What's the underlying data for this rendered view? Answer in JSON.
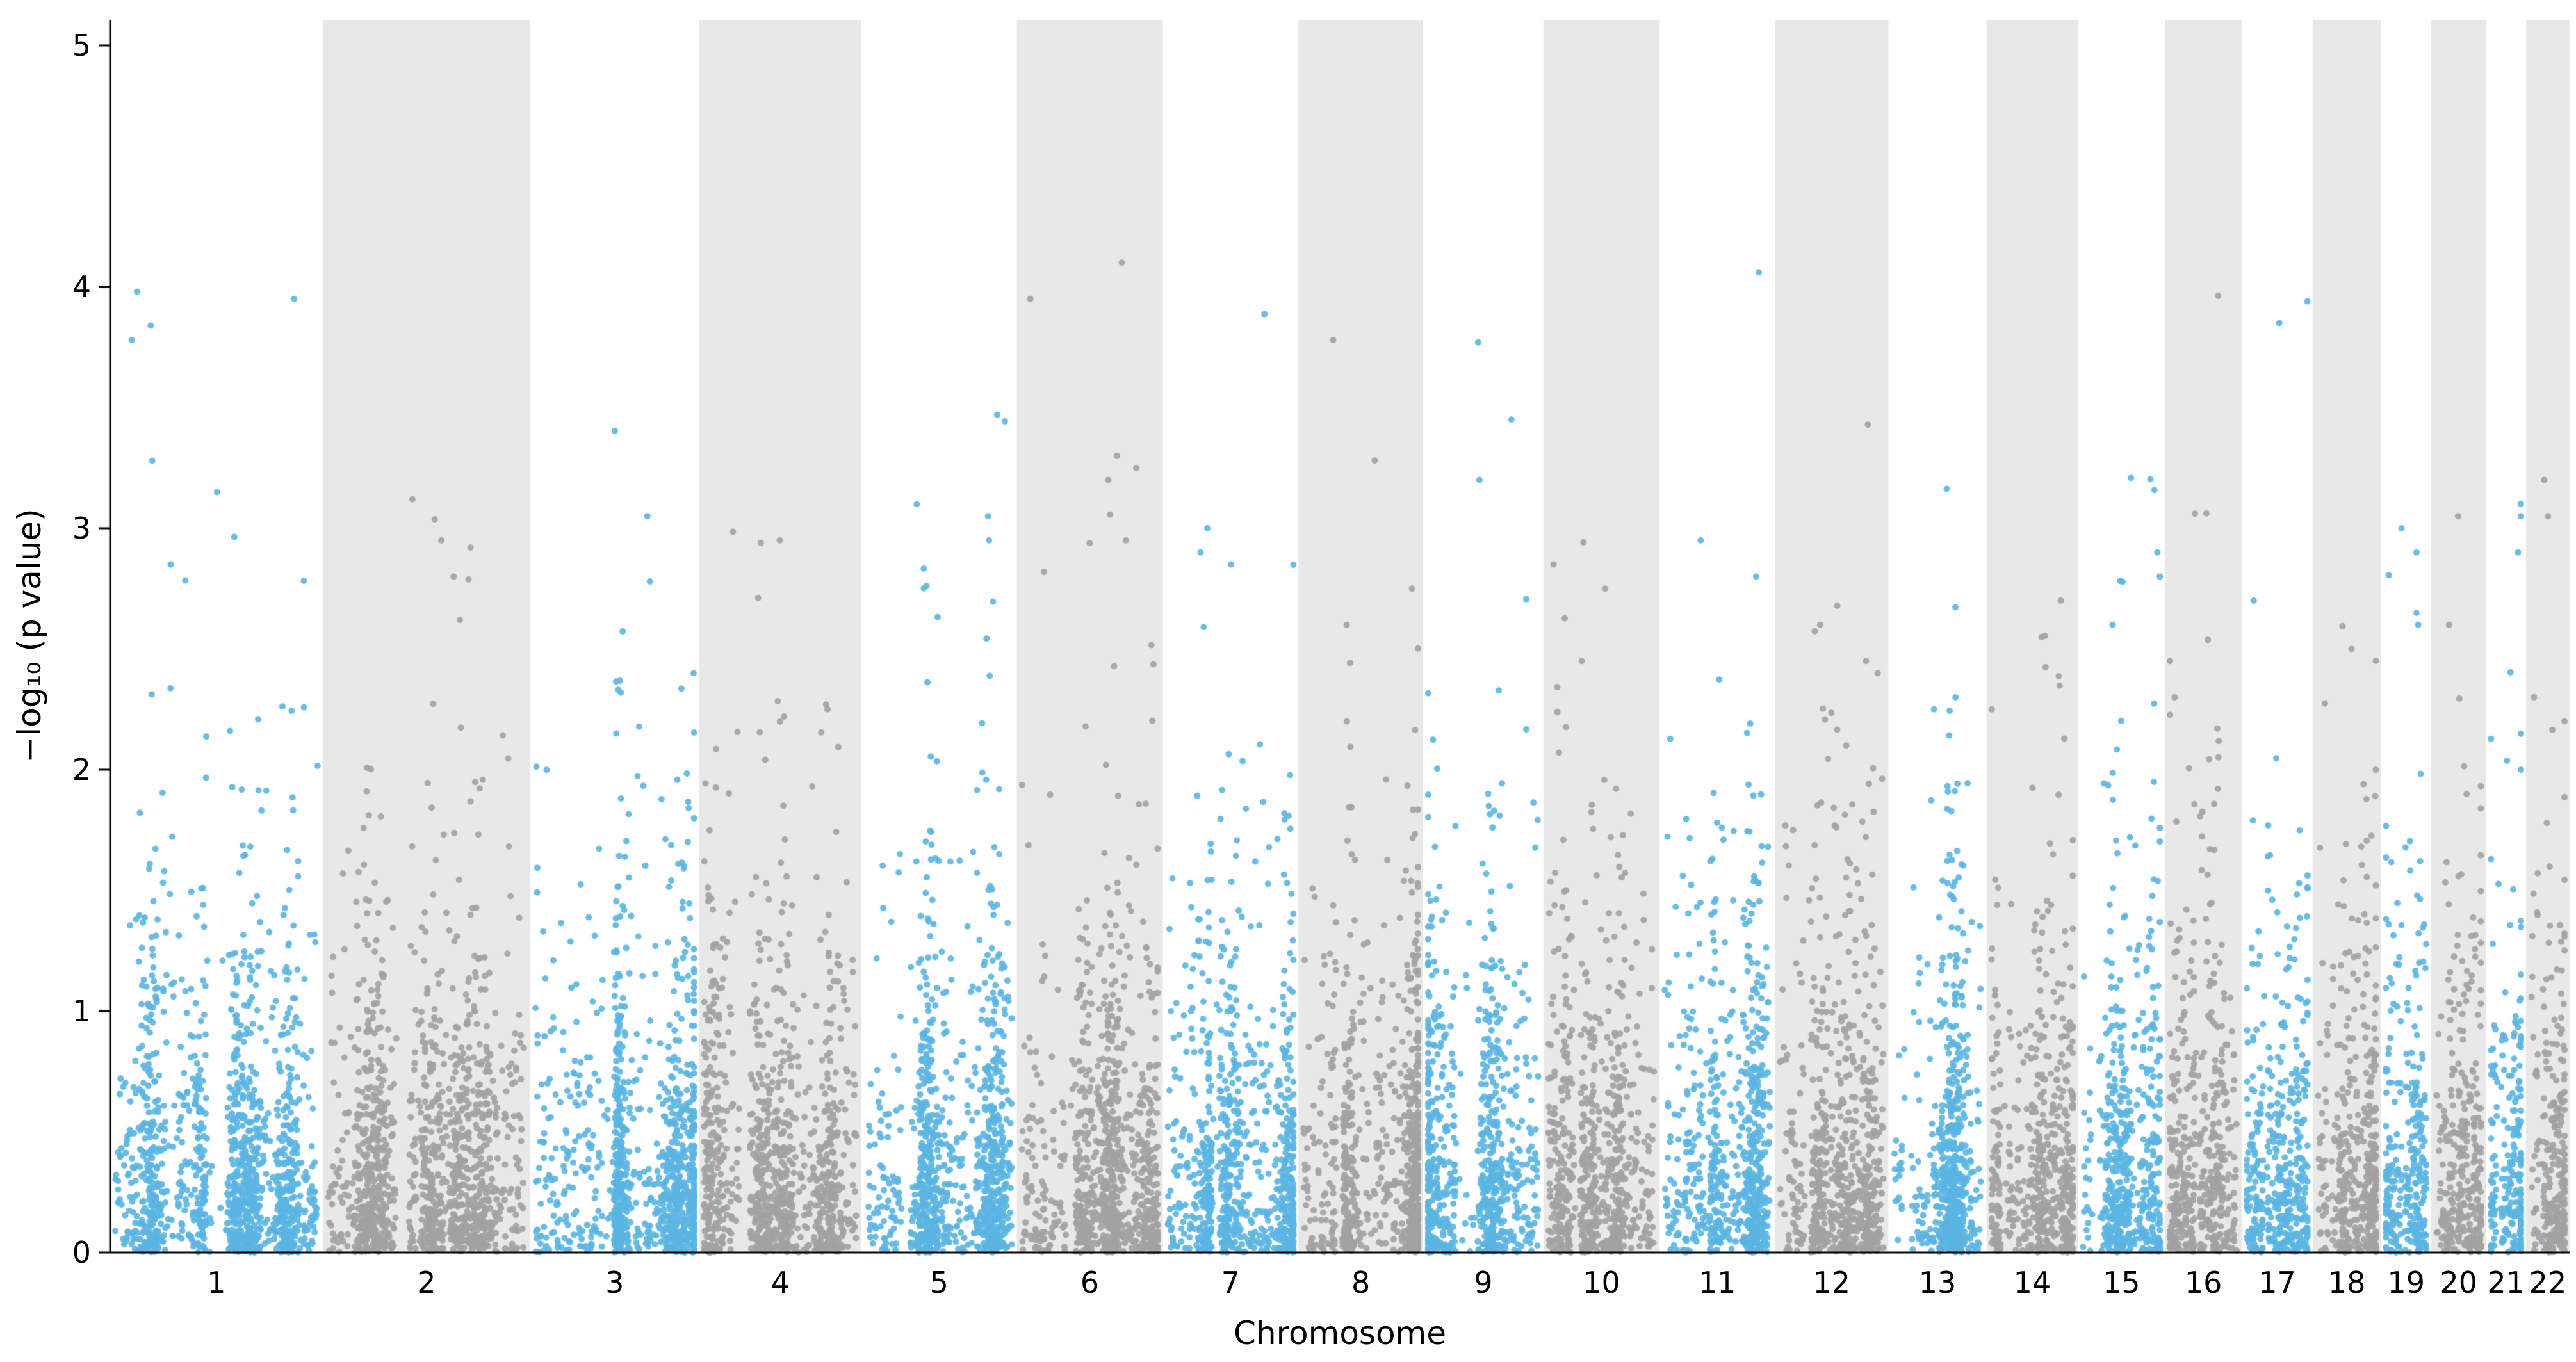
{
  "chart_data": {
    "type": "scatter",
    "subtype": "manhattan-plot",
    "title": "",
    "xlabel": "Chromosome",
    "ylabel": "−log₁₀ (p value)",
    "ylim": [
      0,
      5.1
    ],
    "yticks": [
      0,
      1,
      2,
      3,
      4,
      5
    ],
    "legend": "none",
    "grid": "off",
    "x_axis_note": "22 chromosomes, column width proportional to chromosome length, alternating blue/gray points with gray background bands behind even chromosomes",
    "colors": {
      "odd_points": "#5bb5e2",
      "even_points": "#a2a2a2",
      "band": "#e8e8e8",
      "background": "#ffffff",
      "axis": "#000000"
    },
    "marker": {
      "radius": 5,
      "opacity": 0.9
    },
    "seed": 42,
    "layout": {
      "plot_left": 172,
      "plot_top": 31,
      "plot_right": 4012,
      "plot_bottom": 1956,
      "y_value_at_top": 5.106
    },
    "chromosomes": [
      {
        "label": "1",
        "length_mb": 249,
        "n_points": 1300,
        "centromere": 0.5,
        "gap": 0.1,
        "peaks": [
          3.98,
          3.95,
          3.78,
          3.28,
          3.15,
          2.85
        ]
      },
      {
        "label": "2",
        "length_mb": 243,
        "n_points": 1260,
        "centromere": 0.38,
        "gap": 0.06,
        "peaks": [
          3.12,
          2.95,
          2.8,
          2.62
        ]
      },
      {
        "label": "3",
        "length_mb": 198,
        "n_points": 1030,
        "centromere": 0.46,
        "gap": 0.07,
        "peaks": [
          3.05,
          2.78,
          2.4
        ]
      },
      {
        "label": "4",
        "length_mb": 190,
        "n_points": 990,
        "centromere": 0.26,
        "gap": 0.06,
        "peaks": [
          2.95,
          2.27,
          2.25
        ]
      },
      {
        "label": "5",
        "length_mb": 182,
        "n_points": 950,
        "centromere": 0.27,
        "gap": 0.06,
        "peaks": [
          3.47,
          3.1,
          3.05,
          2.95
        ]
      },
      {
        "label": "6",
        "length_mb": 171,
        "n_points": 890,
        "centromere": 0.36,
        "gap": 0.06,
        "peaks": [
          4.1,
          3.95,
          3.3,
          3.25,
          3.2,
          2.95
        ]
      },
      {
        "label": "7",
        "length_mb": 159,
        "n_points": 830,
        "centromere": 0.38,
        "gap": 0.06,
        "peaks": [
          3.0,
          2.9,
          2.85
        ]
      },
      {
        "label": "8",
        "length_mb": 146,
        "n_points": 760,
        "centromere": 0.31,
        "gap": 0.06,
        "peaks": [
          3.78,
          2.75,
          2.6
        ]
      },
      {
        "label": "9",
        "length_mb": 141,
        "n_points": 730,
        "centromere": 0.35,
        "gap": 0.2,
        "peaks": [
          3.77,
          3.45,
          3.2
        ]
      },
      {
        "label": "10",
        "length_mb": 136,
        "n_points": 710,
        "centromere": 0.27,
        "gap": 0.06,
        "peaks": [
          2.85,
          2.75,
          2.45
        ]
      },
      {
        "label": "11",
        "length_mb": 135,
        "n_points": 700,
        "centromere": 0.4,
        "gap": 0.06,
        "peaks": [
          4.06,
          2.95,
          2.8
        ]
      },
      {
        "label": "12",
        "length_mb": 133,
        "n_points": 690,
        "centromere": 0.27,
        "gap": 0.06,
        "peaks": [
          2.6,
          2.45,
          2.4
        ]
      },
      {
        "label": "13",
        "length_mb": 115,
        "n_points": 600,
        "centromere": 0.15,
        "gap": 0.1,
        "peaks": [
          2.3,
          2.25
        ]
      },
      {
        "label": "14",
        "length_mb": 107,
        "n_points": 560,
        "centromere": 0.16,
        "gap": 0.1,
        "peaks": [
          2.7,
          2.55,
          2.25
        ]
      },
      {
        "label": "15",
        "length_mb": 102,
        "n_points": 530,
        "centromere": 0.17,
        "gap": 0.1,
        "peaks": [
          2.9,
          2.8,
          2.6
        ]
      },
      {
        "label": "16",
        "length_mb": 90,
        "n_points": 470,
        "centromere": 0.41,
        "gap": 0.07,
        "peaks": [
          2.45,
          2.3
        ]
      },
      {
        "label": "17",
        "length_mb": 83,
        "n_points": 430,
        "centromere": 0.3,
        "gap": 0.06,
        "peaks": [
          3.94,
          3.85,
          2.7
        ]
      },
      {
        "label": "18",
        "length_mb": 80,
        "n_points": 420,
        "centromere": 0.21,
        "gap": 0.06,
        "peaks": [
          2.5,
          2.0
        ]
      },
      {
        "label": "19",
        "length_mb": 59,
        "n_points": 310,
        "centromere": 0.42,
        "gap": 0.07,
        "peaks": [
          3.0,
          2.9,
          2.65,
          2.6
        ]
      },
      {
        "label": "20",
        "length_mb": 64,
        "n_points": 330,
        "centromere": 0.44,
        "gap": 0.07,
        "peaks": [
          3.05,
          2.6
        ]
      },
      {
        "label": "21",
        "length_mb": 47,
        "n_points": 240,
        "centromere": 0.26,
        "gap": 0.1,
        "peaks": [
          3.05,
          2.9
        ]
      },
      {
        "label": "22",
        "length_mb": 51,
        "n_points": 260,
        "centromere": 0.3,
        "gap": 0.1,
        "peaks": [
          3.2,
          3.05,
          2.3,
          2.2
        ]
      }
    ]
  }
}
